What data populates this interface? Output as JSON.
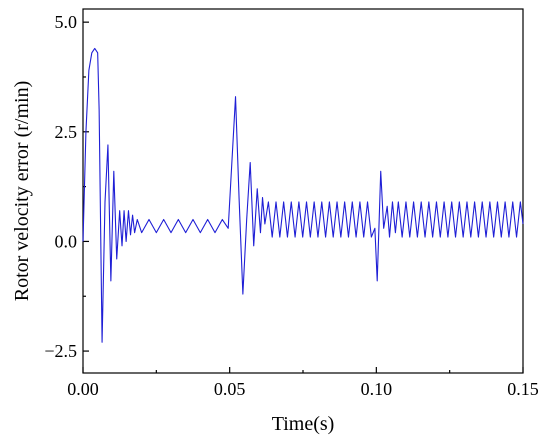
{
  "chart_data": {
    "type": "line",
    "title": "",
    "xlabel": "Time(s)",
    "ylabel": "Rotor velocity error (r/min)",
    "xlim": [
      0,
      0.15
    ],
    "ylim": [
      -3.0,
      5.3
    ],
    "xticks": [
      0.0,
      0.05,
      0.1,
      0.15
    ],
    "xtick_labels": [
      "0.00",
      "0.05",
      "0.10",
      "0.15"
    ],
    "yticks": [
      -2.5,
      0.0,
      2.5,
      5.0
    ],
    "ytick_labels": [
      "−2.5",
      "0.0",
      "2.5",
      "5.0"
    ],
    "grid": false,
    "legend": "none",
    "series": [
      {
        "color": "#1f1fd6",
        "x": [
          0.0,
          0.001,
          0.002,
          0.003,
          0.004,
          0.005,
          0.0055,
          0.0065,
          0.0075,
          0.0085,
          0.0095,
          0.0105,
          0.0115,
          0.0125,
          0.0133,
          0.014,
          0.0147,
          0.0155,
          0.0162,
          0.0169,
          0.0176,
          0.0185,
          0.02,
          0.0225,
          0.025,
          0.0275,
          0.03,
          0.0325,
          0.035,
          0.0375,
          0.04,
          0.0425,
          0.045,
          0.0475,
          0.0495,
          0.0505,
          0.052,
          0.0532,
          0.0545,
          0.0558,
          0.057,
          0.0582,
          0.0594,
          0.0605,
          0.0612,
          0.062,
          0.0632,
          0.0645,
          0.0658,
          0.0671,
          0.0684,
          0.0697,
          0.071,
          0.0723,
          0.0736,
          0.0749,
          0.0762,
          0.0775,
          0.0788,
          0.0801,
          0.0814,
          0.0827,
          0.084,
          0.0853,
          0.0866,
          0.0879,
          0.0892,
          0.0905,
          0.0918,
          0.0931,
          0.0944,
          0.0957,
          0.097,
          0.0983,
          0.0995,
          0.1003,
          0.1015,
          0.1025,
          0.1037,
          0.1045,
          0.1055,
          0.1065,
          0.1075,
          0.1088,
          0.1101,
          0.1114,
          0.1127,
          0.114,
          0.1153,
          0.1166,
          0.1179,
          0.1192,
          0.1205,
          0.1218,
          0.1231,
          0.1244,
          0.1257,
          0.127,
          0.1283,
          0.1296,
          0.1309,
          0.1322,
          0.1335,
          0.1348,
          0.1361,
          0.1374,
          0.1387,
          0.14,
          0.1413,
          0.1426,
          0.1439,
          0.1452,
          0.1465,
          0.1478,
          0.1491,
          0.15
        ],
        "y": [
          0.0,
          2.5,
          3.9,
          4.3,
          4.4,
          4.3,
          3.0,
          -2.3,
          0.9,
          2.2,
          -0.9,
          1.6,
          -0.4,
          0.7,
          -0.1,
          0.7,
          0.0,
          0.7,
          0.15,
          0.6,
          0.2,
          0.5,
          0.2,
          0.5,
          0.2,
          0.5,
          0.2,
          0.5,
          0.2,
          0.5,
          0.2,
          0.5,
          0.2,
          0.5,
          0.3,
          1.5,
          3.3,
          1.0,
          -1.2,
          0.5,
          1.8,
          -0.1,
          1.2,
          0.2,
          1.0,
          0.4,
          0.9,
          0.1,
          0.9,
          0.1,
          0.9,
          0.1,
          0.9,
          0.1,
          0.9,
          0.1,
          0.9,
          0.1,
          0.9,
          0.1,
          0.9,
          0.1,
          0.9,
          0.1,
          0.9,
          0.1,
          0.9,
          0.1,
          0.9,
          0.1,
          0.9,
          0.1,
          0.9,
          0.1,
          0.3,
          -0.9,
          1.6,
          0.3,
          0.8,
          0.1,
          0.9,
          0.2,
          0.9,
          0.1,
          0.9,
          0.1,
          0.9,
          0.1,
          0.9,
          0.1,
          0.9,
          0.1,
          0.9,
          0.1,
          0.9,
          0.1,
          0.9,
          0.1,
          0.9,
          0.1,
          0.9,
          0.1,
          0.9,
          0.1,
          0.9,
          0.1,
          0.9,
          0.1,
          0.9,
          0.1,
          0.9,
          0.1,
          0.9,
          0.1,
          0.9,
          0.4
        ]
      }
    ]
  }
}
